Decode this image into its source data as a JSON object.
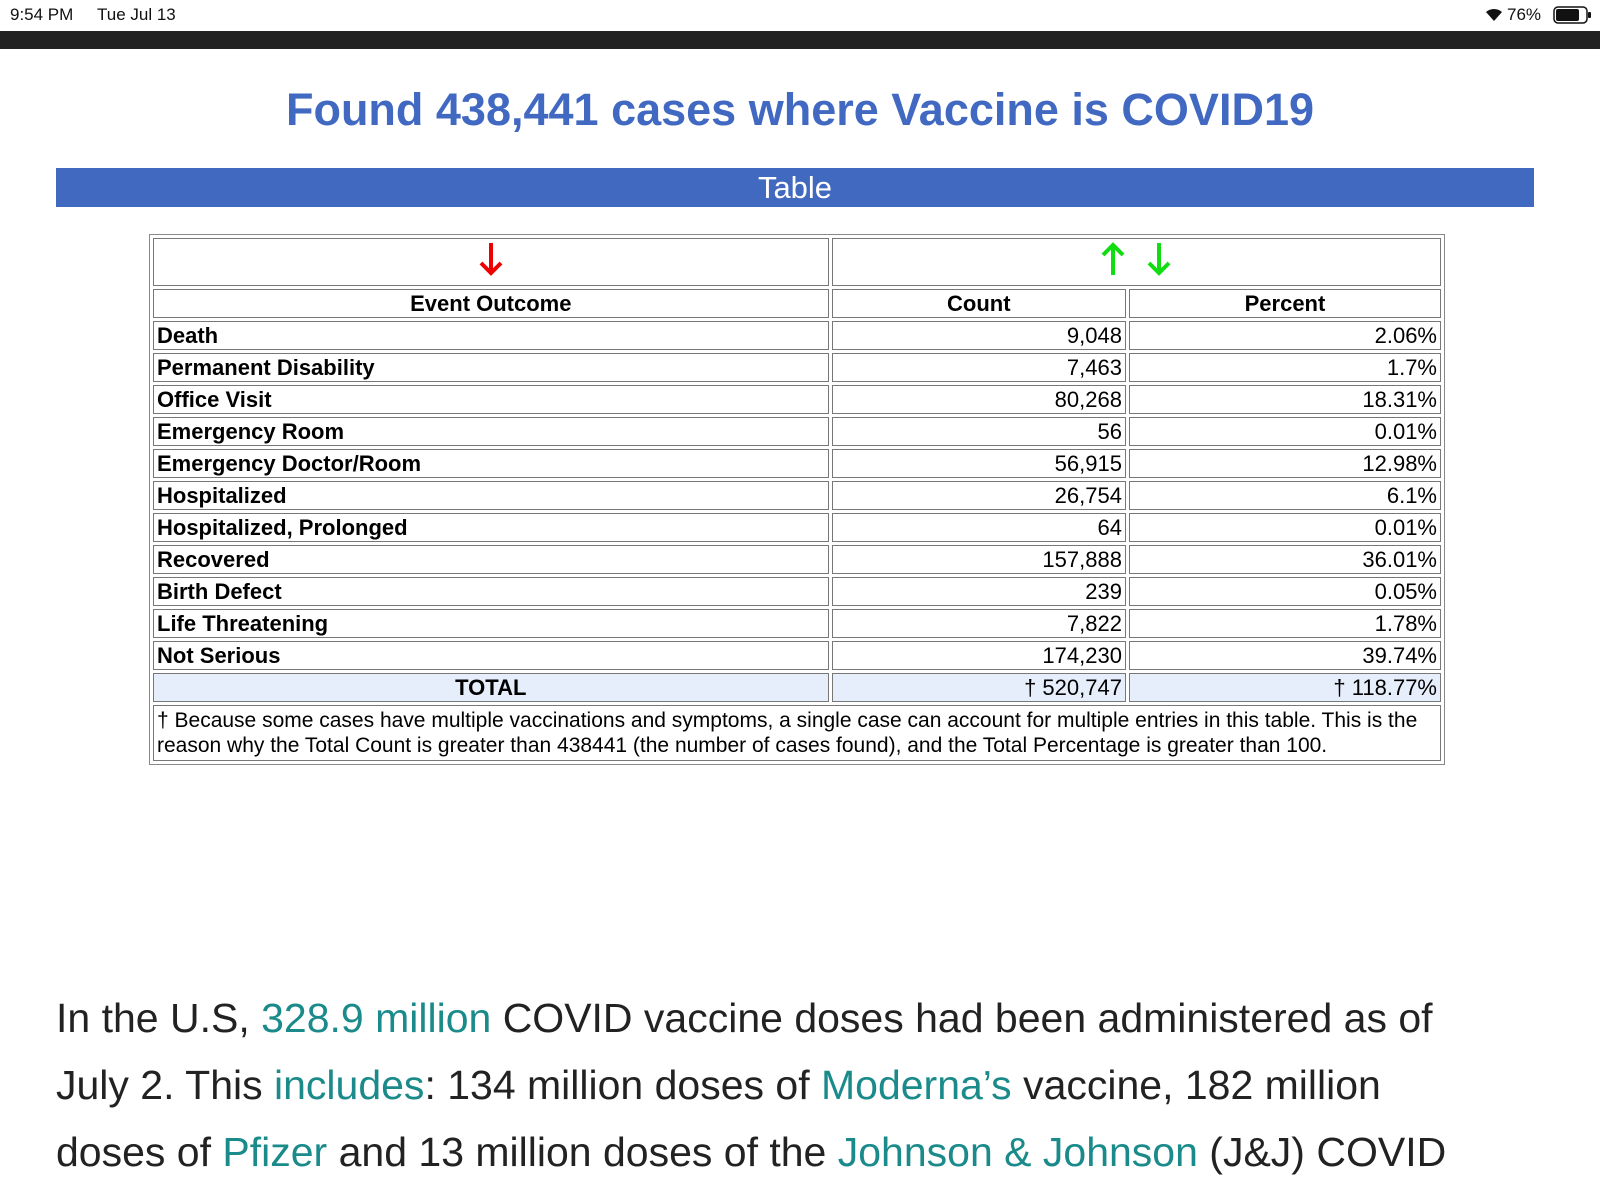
{
  "status_bar": {
    "time": "9:54 PM",
    "date": "Tue Jul 13",
    "battery": "76%"
  },
  "header": {
    "title": "Found 438,441 cases where Vaccine is COVID19"
  },
  "table": {
    "caption": "Table",
    "columns": [
      "Event Outcome",
      "Count",
      "Percent"
    ],
    "rows": [
      [
        "Death",
        "9,048",
        "2.06%"
      ],
      [
        "Permanent Disability",
        "7,463",
        "1.7%"
      ],
      [
        "Office Visit",
        "80,268",
        "18.31%"
      ],
      [
        "Emergency Room",
        "56",
        "0.01%"
      ],
      [
        "Emergency Doctor/Room",
        "56,915",
        "12.98%"
      ],
      [
        "Hospitalized",
        "26,754",
        "6.1%"
      ],
      [
        "Hospitalized, Prolonged",
        "64",
        "0.01%"
      ],
      [
        "Recovered",
        "157,888",
        "36.01%"
      ],
      [
        "Birth Defect",
        "239",
        "0.05%"
      ],
      [
        "Life Threatening",
        "7,822",
        "1.78%"
      ],
      [
        "Not Serious",
        "174,230",
        "39.74%"
      ]
    ],
    "total": [
      "TOTAL",
      "† 520,747",
      "† 118.77%"
    ],
    "footnote": "† Because some cases have multiple vaccinations and symptoms, a single case can account for multiple entries in this table. This is the reason why the Total Count is greater than 438441 (the number of cases found), and the Total Percentage is greater than 100."
  },
  "article": {
    "paragraph": [
      {
        "text": "In the U.S, "
      },
      {
        "text": "328.9 million",
        "link": true
      },
      {
        "text": " COVID vaccine doses had been administered as of July 2. This "
      },
      {
        "text": "includes",
        "link": true
      },
      {
        "text": ": 134 million doses of "
      },
      {
        "text": "Moderna’s",
        "link": true
      },
      {
        "text": " vaccine, 182 million doses of "
      },
      {
        "text": "Pfizer",
        "link": true
      },
      {
        "text": " and 13 million doses of the "
      },
      {
        "text": "Johnson & Johnson",
        "link": true
      },
      {
        "text": " (J&J) COVID"
      }
    ]
  }
}
